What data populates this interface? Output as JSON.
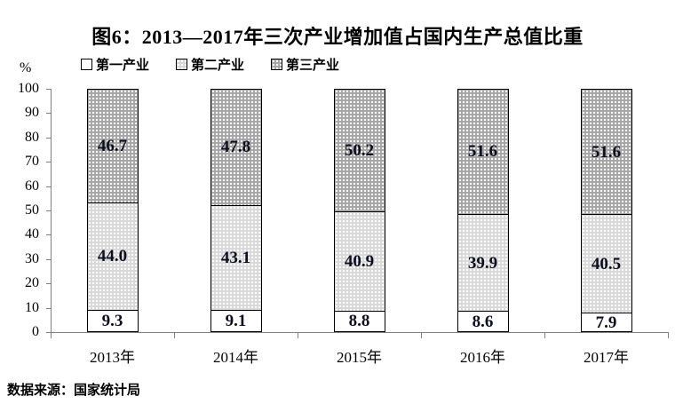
{
  "title": "图6：2013—2017年三次产业增加值占国内生产总值比重",
  "source": "数据来源：国家统计局",
  "colors": {
    "axis": "#808080",
    "segment_border": "#000000",
    "value_label": "#0d0d1f",
    "primary_fill": "#ffffff",
    "secondary_fill": "#d8d8d8",
    "tertiary_fill": "#a6a6a6"
  },
  "chart_data": {
    "type": "bar",
    "stacked": true,
    "title": "图6：2013—2017年三次产业增加值占国内生产总值比重",
    "xlabel": "",
    "ylabel": "%",
    "ylim": [
      0,
      100
    ],
    "yticks": [
      0,
      10,
      20,
      30,
      40,
      50,
      60,
      70,
      80,
      90,
      100
    ],
    "grid": false,
    "legend_position": "top-left",
    "categories": [
      "2013年",
      "2014年",
      "2015年",
      "2016年",
      "2017年"
    ],
    "series": [
      {
        "name": "第一产业",
        "fill": "#ffffff",
        "dots": false,
        "values": [
          "9.3",
          "9.1",
          "8.8",
          "8.6",
          "7.9"
        ]
      },
      {
        "name": "第二产业",
        "fill": "#d8d8d8",
        "dots": true,
        "values": [
          "44.0",
          "43.1",
          "40.9",
          "39.9",
          "40.5"
        ]
      },
      {
        "name": "第三产业",
        "fill": "#a6a6a6",
        "dots": true,
        "values": [
          "46.7",
          "47.8",
          "50.2",
          "51.6",
          "51.6"
        ]
      }
    ]
  }
}
